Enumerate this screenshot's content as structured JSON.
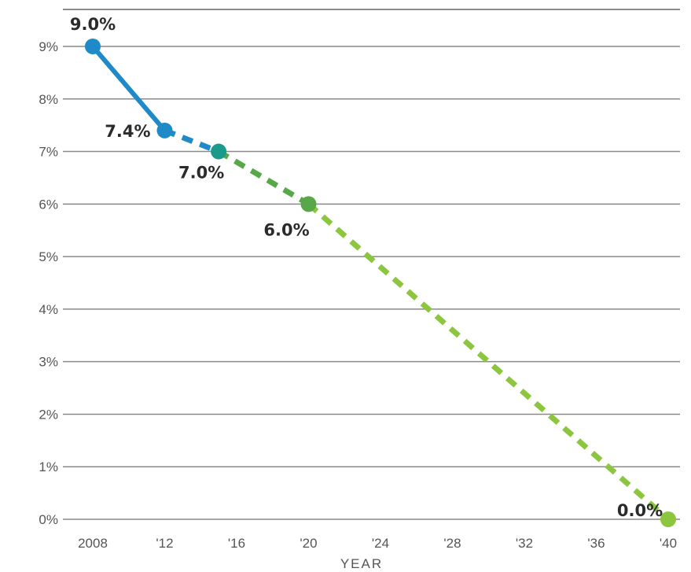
{
  "chart_data": {
    "type": "line",
    "xlabel": "YEAR",
    "ylabel": "",
    "title": "",
    "xlim": [
      2006,
      2041
    ],
    "ylim": [
      0,
      9
    ],
    "y_ticks": [
      {
        "value": 0,
        "label": "0%"
      },
      {
        "value": 1,
        "label": "1%"
      },
      {
        "value": 2,
        "label": "2%"
      },
      {
        "value": 3,
        "label": "3%"
      },
      {
        "value": 4,
        "label": "4%"
      },
      {
        "value": 5,
        "label": "5%"
      },
      {
        "value": 6,
        "label": "6%"
      },
      {
        "value": 7,
        "label": "7%"
      },
      {
        "value": 8,
        "label": "8%"
      },
      {
        "value": 9,
        "label": "9%"
      }
    ],
    "x_ticks": [
      {
        "value": 2008,
        "label": "2008"
      },
      {
        "value": 2012,
        "label": "'12"
      },
      {
        "value": 2016,
        "label": "'16"
      },
      {
        "value": 2020,
        "label": "'20"
      },
      {
        "value": 2024,
        "label": "'24"
      },
      {
        "value": 2028,
        "label": "'28"
      },
      {
        "value": 2032,
        "label": "'32"
      },
      {
        "value": 2036,
        "label": "'36"
      },
      {
        "value": 2040,
        "label": "'40"
      }
    ],
    "grid": true,
    "segments": [
      {
        "style": "solid",
        "color": "#1e8bc8",
        "x": [
          2008,
          2012
        ],
        "y": [
          9.0,
          7.4
        ]
      },
      {
        "style": "dashed",
        "color": "#1e8bc8",
        "x": [
          2012,
          2015
        ],
        "y": [
          7.4,
          7.0
        ]
      },
      {
        "style": "dashed",
        "color": "#58a84a",
        "x": [
          2015,
          2020
        ],
        "y": [
          7.0,
          6.0
        ]
      },
      {
        "style": "dashed",
        "color": "#8cc63f",
        "x": [
          2020,
          2040
        ],
        "y": [
          6.0,
          0.0
        ]
      }
    ],
    "points": [
      {
        "x": 2008,
        "y": 9.0,
        "label": "9.0%",
        "color": "#1e8bc8",
        "label_pos": "above"
      },
      {
        "x": 2012,
        "y": 7.4,
        "label": "7.4%",
        "color": "#1e8bc8",
        "label_pos": "left"
      },
      {
        "x": 2015,
        "y": 7.0,
        "label": "7.0%",
        "color": "#1a9a8a",
        "label_pos": "below"
      },
      {
        "x": 2020,
        "y": 6.0,
        "label": "6.0%",
        "color": "#58a84a",
        "label_pos": "below-left"
      },
      {
        "x": 2040,
        "y": 0.0,
        "label": "0.0%",
        "color": "#8cc63f",
        "label_pos": "above-left"
      }
    ]
  }
}
